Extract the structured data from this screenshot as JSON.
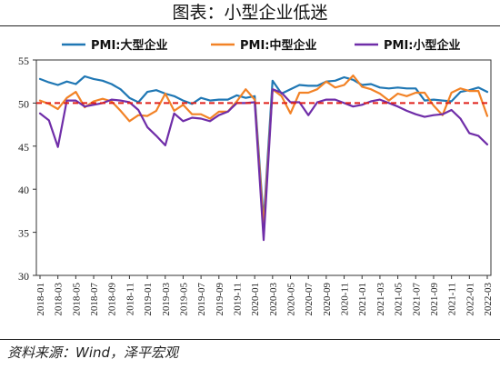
{
  "header": {
    "title": "图表：小型企业低迷"
  },
  "footer": {
    "source": "资料来源：Wind，泽平宏观"
  },
  "colors": {
    "large": "#1f77b4",
    "medium": "#f28226",
    "small": "#6f2da8",
    "reference": "#e0201b"
  },
  "chart_data": {
    "type": "line",
    "x": [
      "2018-01",
      "2018-02",
      "2018-03",
      "2018-04",
      "2018-05",
      "2018-06",
      "2018-07",
      "2018-08",
      "2018-09",
      "2018-10",
      "2018-11",
      "2018-12",
      "2019-01",
      "2019-02",
      "2019-03",
      "2019-04",
      "2019-05",
      "2019-06",
      "2019-07",
      "2019-08",
      "2019-09",
      "2019-10",
      "2019-11",
      "2019-12",
      "2020-01",
      "2020-02",
      "2020-03",
      "2020-04",
      "2020-05",
      "2020-06",
      "2020-07",
      "2020-08",
      "2020-09",
      "2020-10",
      "2020-11",
      "2020-12",
      "2021-01",
      "2021-02",
      "2021-03",
      "2021-04",
      "2021-05",
      "2021-06",
      "2021-07",
      "2021-08",
      "2021-09",
      "2021-10",
      "2021-11",
      "2021-12",
      "2022-01",
      "2022-02",
      "2022-03"
    ],
    "xticks": [
      "2018-01",
      "2018-03",
      "2018-05",
      "2018-07",
      "2018-09",
      "2018-11",
      "2019-01",
      "2019-03",
      "2019-05",
      "2019-07",
      "2019-09",
      "2019-11",
      "2020-01",
      "2020-03",
      "2020-05",
      "2020-07",
      "2020-09",
      "2020-11",
      "2021-01",
      "2021-03",
      "2021-05",
      "2021-07",
      "2021-09",
      "2021-11",
      "2022-01",
      "2022-03"
    ],
    "ylim": [
      30,
      55
    ],
    "yticks": [
      30,
      35,
      40,
      45,
      50,
      55
    ],
    "reference_line": 50,
    "legend_position": "top",
    "series": [
      {
        "name": "PMI:大型企业",
        "key": "large",
        "values": [
          52.8,
          52.4,
          52.1,
          52.5,
          52.2,
          53.1,
          52.8,
          52.6,
          52.2,
          51.6,
          50.6,
          50.1,
          51.3,
          51.5,
          51.1,
          50.8,
          50.3,
          49.9,
          50.6,
          50.3,
          50.4,
          50.4,
          50.9,
          50.6,
          50.8,
          36.3,
          52.6,
          51.1,
          51.6,
          52.1,
          52.0,
          52.0,
          52.5,
          52.6,
          53.0,
          52.7,
          52.1,
          52.2,
          51.8,
          51.7,
          51.8,
          51.7,
          51.7,
          50.3,
          50.4,
          50.3,
          50.2,
          51.3,
          51.5,
          51.8,
          51.3
        ]
      },
      {
        "name": "PMI:中型企业",
        "key": "medium",
        "values": [
          50.3,
          49.9,
          49.3,
          50.6,
          51.3,
          49.5,
          50.2,
          50.5,
          50.2,
          49.1,
          47.9,
          48.6,
          48.5,
          49.1,
          51.1,
          49.1,
          49.8,
          48.7,
          48.7,
          48.2,
          49.0,
          49.0,
          50.2,
          51.6,
          50.4,
          35.5,
          51.6,
          50.8,
          48.8,
          51.2,
          51.2,
          51.6,
          52.5,
          51.8,
          52.1,
          53.2,
          51.9,
          51.6,
          51.1,
          50.3,
          51.1,
          50.8,
          51.2,
          51.2,
          49.7,
          48.6,
          51.2,
          51.7,
          51.4,
          51.4,
          48.5
        ]
      },
      {
        "name": "PMI:小型企业",
        "key": "small",
        "values": [
          48.8,
          48.0,
          44.9,
          50.3,
          50.3,
          49.6,
          49.8,
          50.0,
          50.4,
          50.3,
          50.1,
          49.2,
          47.2,
          46.2,
          45.1,
          48.8,
          47.9,
          48.3,
          48.2,
          47.9,
          48.6,
          49.0,
          50.0,
          50.0,
          50.1,
          34.1,
          51.6,
          51.2,
          50.1,
          50.1,
          48.6,
          50.1,
          50.4,
          50.4,
          50.0,
          49.6,
          49.8,
          50.2,
          50.4,
          50.0,
          49.6,
          49.1,
          48.7,
          48.4,
          48.6,
          48.7,
          49.2,
          48.2,
          46.5,
          46.2,
          45.2
        ]
      }
    ]
  }
}
